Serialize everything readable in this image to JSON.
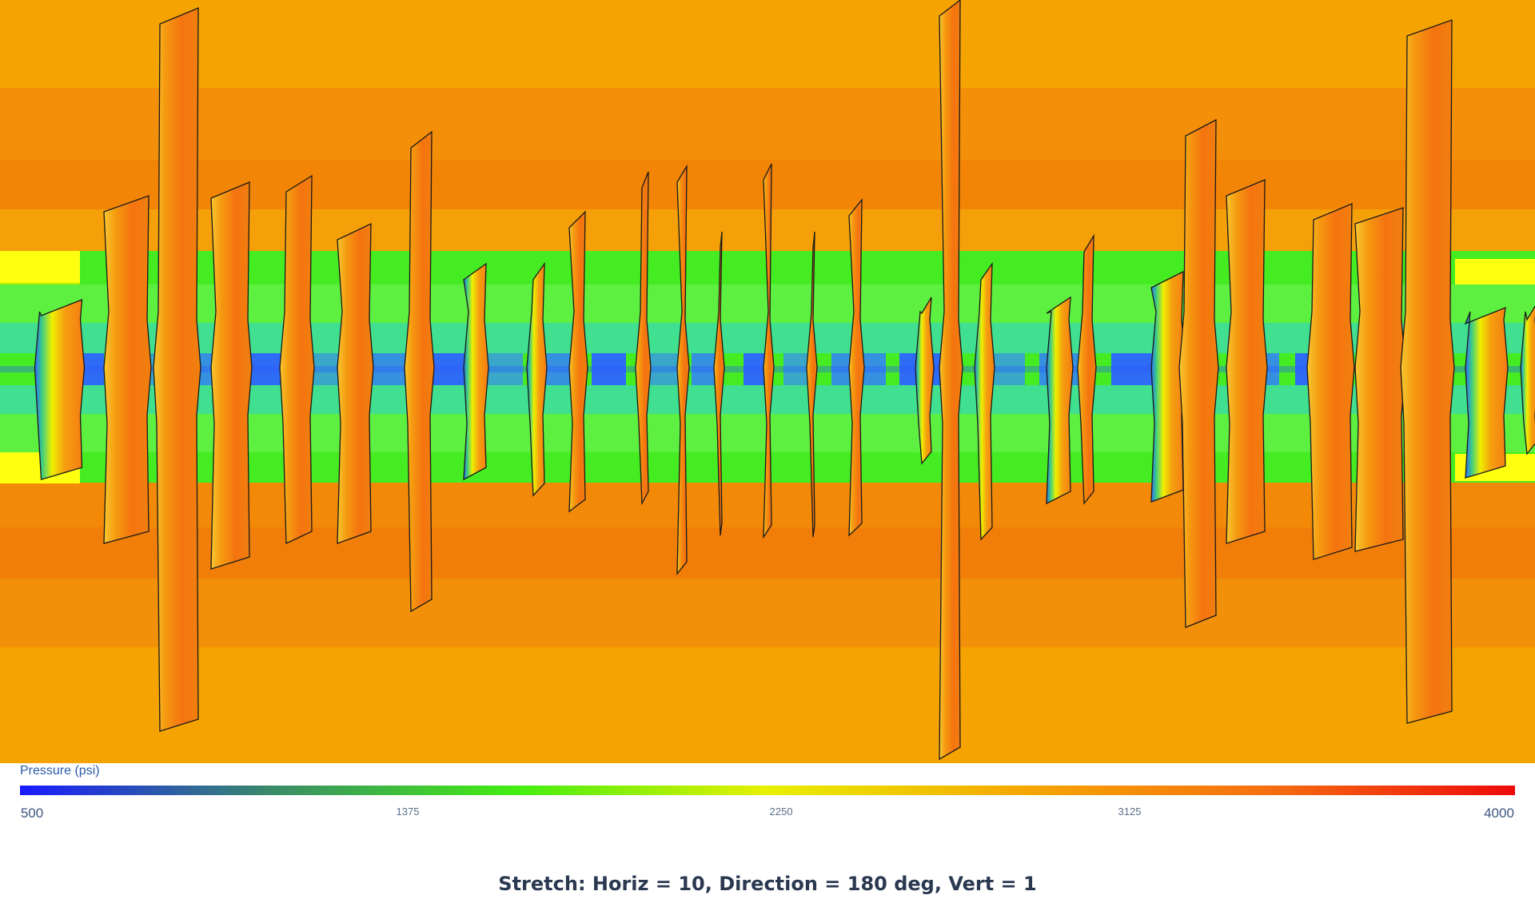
{
  "legend": {
    "title": "Pressure (psi)",
    "ticks": [
      "500",
      "1375",
      "2250",
      "3125",
      "4000"
    ],
    "min": 500,
    "max": 4000,
    "colormap": [
      "#1a1aff",
      "#3a8a6a",
      "#44ee11",
      "#e8f000",
      "#f5a800",
      "#f57010",
      "#ee0a0a"
    ]
  },
  "caption": "Stretch: Horiz = 10, Direction = 180 deg, Vert = 1",
  "colors": {
    "fracture_fill": "#f57a12",
    "fracture_edge": "#1a1a1a",
    "reservoir_high": "#f5a000",
    "reservoir_mid": "#f28a08",
    "band_green": "#44ee22",
    "band_core": "#2a60ff",
    "band_yellow": "#ffff00"
  }
}
